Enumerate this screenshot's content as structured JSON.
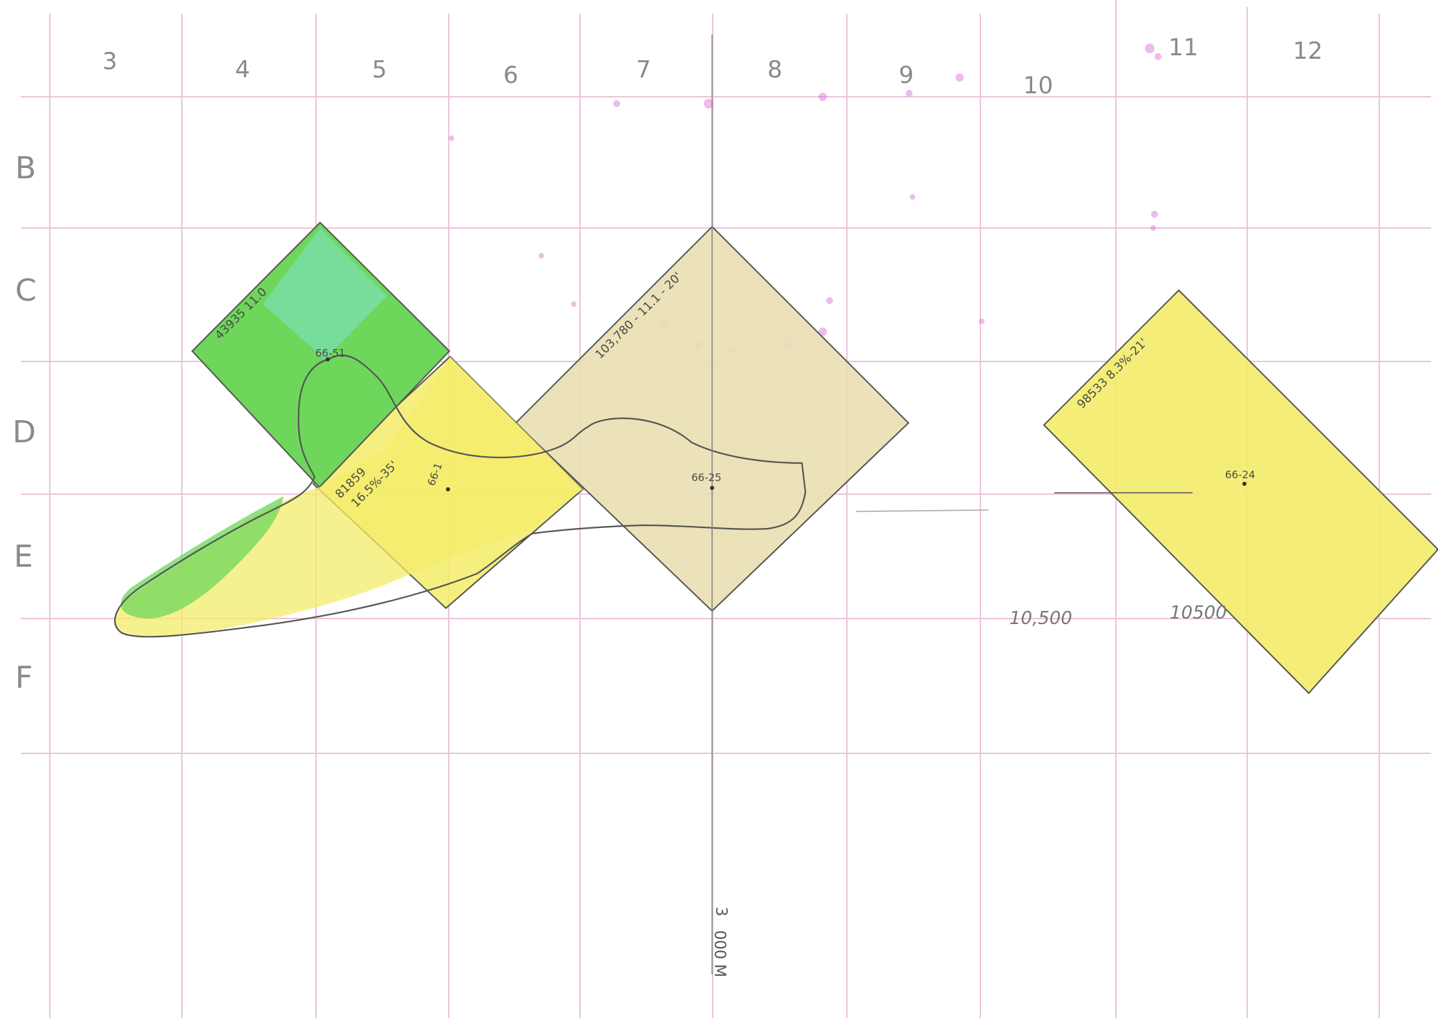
{
  "grid": {
    "column_labels": [
      "3",
      "4",
      "5",
      "6",
      "7",
      "8",
      "9",
      "10",
      "11",
      "12"
    ],
    "row_labels": [
      "B",
      "C",
      "D",
      "E",
      "F"
    ]
  },
  "blocks": {
    "green": {
      "label": "43935 11.0",
      "well": "66-51"
    },
    "yellow_mid": {
      "label1": "81859",
      "label2": "16.5%-35'",
      "well": "66-1"
    },
    "tan": {
      "label": "103,780 - 11.1 - 20'",
      "well": "66-25"
    },
    "yellow_right": {
      "label": "98533 8.3%-21'",
      "well": "66-24"
    }
  },
  "contours": {
    "contour1": "10,500",
    "contour2": "10500"
  },
  "scale": {
    "value": "3",
    "unit": "000 M"
  },
  "colors": {
    "grid_line": "#e8b9d4",
    "green_fill": "#6ed65a",
    "cyan_tint": "#7fe3d0",
    "yellow_fill": "#f3ec6a",
    "tan_fill": "#e9dfb3",
    "pencil": "#555555",
    "magenta_specks": "#d86ad8"
  }
}
